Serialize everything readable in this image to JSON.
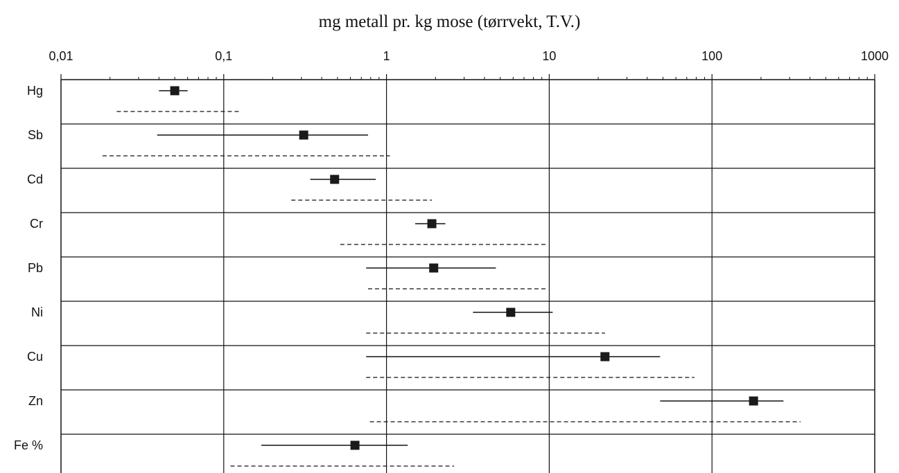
{
  "chart_data": {
    "type": "range-plot",
    "title": "mg metall pr. kg mose (tørrvekt, T.V.)",
    "x_scale": "log",
    "xlim": [
      0.01,
      1000
    ],
    "x_ticks": [
      {
        "value": 0.01,
        "label": "0,01"
      },
      {
        "value": 0.1,
        "label": "0,1"
      },
      {
        "value": 1,
        "label": "1"
      },
      {
        "value": 10,
        "label": "10"
      },
      {
        "value": 100,
        "label": "100"
      },
      {
        "value": 1000,
        "label": "1000"
      }
    ],
    "grid": true,
    "categories": [
      "Hg",
      "Sb",
      "Cd",
      "Cr",
      "Pb",
      "Ni",
      "Cu",
      "Zn",
      "Fe %"
    ],
    "series": [
      {
        "style": "solid-with-marker",
        "points": [
          {
            "min": 0.04,
            "value": 0.05,
            "max": 0.06
          },
          {
            "min": 0.039,
            "value": 0.31,
            "max": 0.77
          },
          {
            "min": 0.34,
            "value": 0.48,
            "max": 0.86
          },
          {
            "min": 1.5,
            "value": 1.9,
            "max": 2.3
          },
          {
            "min": 0.75,
            "value": 1.95,
            "max": 4.7
          },
          {
            "min": 3.4,
            "value": 5.8,
            "max": 10.5
          },
          {
            "min": 0.75,
            "value": 22,
            "max": 48
          },
          {
            "min": 48,
            "value": 180,
            "max": 275
          },
          {
            "min": 0.17,
            "value": 0.64,
            "max": 1.35
          }
        ]
      },
      {
        "style": "dashed-range",
        "points": [
          {
            "min": 0.022,
            "max": 0.125
          },
          {
            "min": 0.018,
            "max": 1.05
          },
          {
            "min": 0.26,
            "max": 1.9
          },
          {
            "min": 0.52,
            "max": 9.5
          },
          {
            "min": 0.77,
            "max": 9.5
          },
          {
            "min": 0.75,
            "max": 22
          },
          {
            "min": 0.75,
            "max": 78
          },
          {
            "min": 0.79,
            "max": 350
          },
          {
            "min": 0.11,
            "max": 2.6
          }
        ]
      }
    ]
  }
}
